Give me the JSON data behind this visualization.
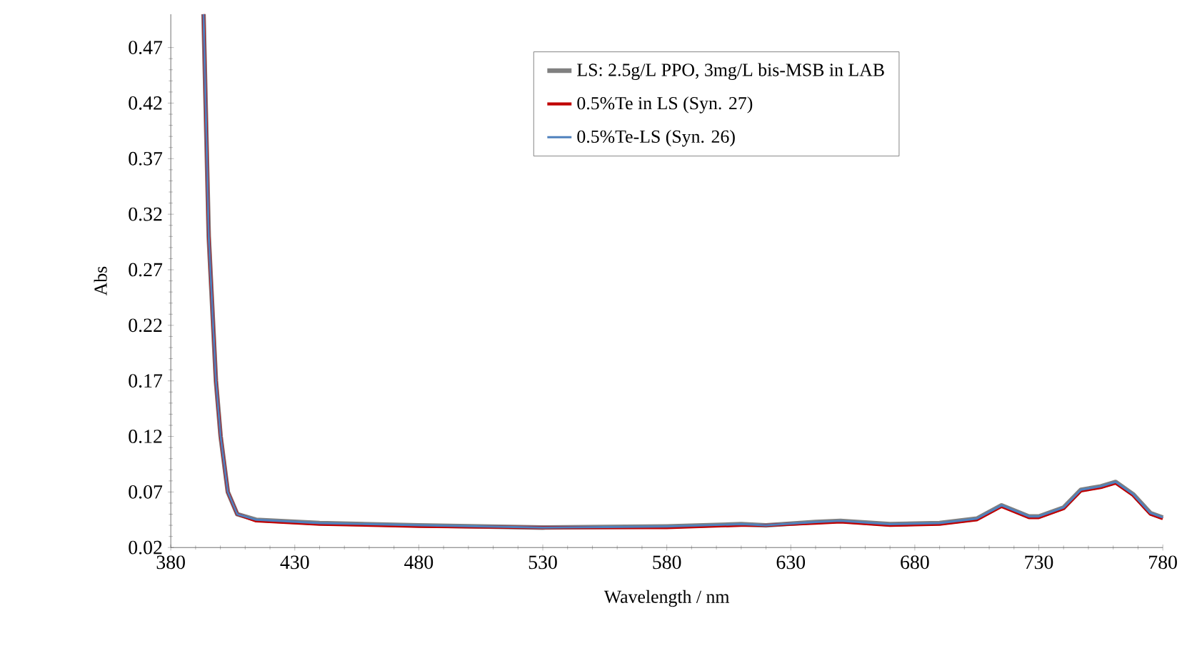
{
  "chart_data": {
    "type": "line",
    "xlabel": "Wavelength  / nm",
    "ylabel": "Abs",
    "xlim": [
      380,
      780
    ],
    "ylim": [
      0.02,
      0.5
    ],
    "xticks": [
      380,
      430,
      480,
      530,
      580,
      630,
      680,
      730,
      780
    ],
    "yticks": [
      0.02,
      0.07,
      0.12,
      0.17,
      0.22,
      0.27,
      0.32,
      0.37,
      0.42,
      0.47
    ],
    "grid": false,
    "legend": "top",
    "marker": "none",
    "line_style": "solid",
    "x": [
      393.2,
      395.3,
      398.2,
      400.1,
      403,
      406.8,
      414.4,
      440,
      480,
      530,
      580,
      610,
      620,
      640,
      650,
      670,
      690,
      705,
      715,
      726,
      730,
      740,
      747,
      755,
      761,
      768,
      775,
      780
    ],
    "series": [
      {
        "name": "LS: 2.5g/L PPO, 3mg/L bis-MSB in LAB",
        "color": "#808080",
        "values": [
          0.5,
          0.3,
          0.17,
          0.12,
          0.07,
          0.05,
          0.045,
          0.042,
          0.04,
          0.038,
          0.039,
          0.041,
          0.04,
          0.043,
          0.044,
          0.041,
          0.042,
          0.046,
          0.058,
          0.048,
          0.048,
          0.056,
          0.072,
          0.075,
          0.079,
          0.068,
          0.051,
          0.047
        ]
      },
      {
        "name": "0.5%Te in LS (Syn. 27)",
        "color": "#c00000",
        "values": [
          0.5,
          0.3,
          0.17,
          0.12,
          0.07,
          0.05,
          0.044,
          0.041,
          0.039,
          0.038,
          0.038,
          0.04,
          0.04,
          0.042,
          0.043,
          0.04,
          0.041,
          0.045,
          0.057,
          0.047,
          0.047,
          0.055,
          0.071,
          0.074,
          0.078,
          0.067,
          0.05,
          0.046
        ]
      },
      {
        "name": "0.5%Te-LS (Syn. 26)",
        "color": "#4f81bd",
        "values": [
          0.5,
          0.3,
          0.17,
          0.12,
          0.07,
          0.05,
          0.045,
          0.042,
          0.04,
          0.038,
          0.039,
          0.041,
          0.04,
          0.043,
          0.044,
          0.041,
          0.042,
          0.046,
          0.058,
          0.048,
          0.048,
          0.056,
          0.072,
          0.075,
          0.079,
          0.068,
          0.051,
          0.047
        ]
      }
    ]
  }
}
